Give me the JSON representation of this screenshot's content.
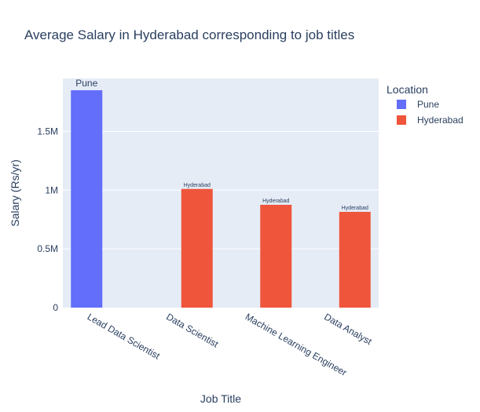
{
  "chart_data": {
    "type": "bar",
    "title": "Average Salary in Hyderabad corresponding to job titles",
    "xlabel": "Job Title",
    "ylabel": "Salary (Rs/yr)",
    "categories": [
      "Lead Data Scientist",
      "Data Scientist",
      "Machine Learning Engineer",
      "Data Analyst"
    ],
    "ylim": [
      0,
      1950000
    ],
    "yticks": [
      {
        "value": 0,
        "label": "0"
      },
      {
        "value": 500000,
        "label": "0.5M"
      },
      {
        "value": 1000000,
        "label": "1M"
      },
      {
        "value": 1500000,
        "label": "1.5M"
      }
    ],
    "legend": {
      "title": "Location",
      "position": "right",
      "entries": [
        "Pune",
        "Hyderabad"
      ]
    },
    "series": [
      {
        "name": "Pune",
        "color": "#636efa",
        "values": [
          1850000,
          null,
          null,
          null
        ],
        "text": [
          "Pune",
          "",
          "",
          ""
        ]
      },
      {
        "name": "Hyderabad",
        "color": "#ef553b",
        "values": [
          null,
          1010000,
          875000,
          815000
        ],
        "text": [
          "",
          "Hyderabad",
          "Hyderabad",
          "Hyderabad"
        ]
      }
    ],
    "grid": true
  },
  "colors": {
    "plot_bg": "#e5ecf6",
    "grid": "#ffffff",
    "text": "#2a3f5f"
  }
}
